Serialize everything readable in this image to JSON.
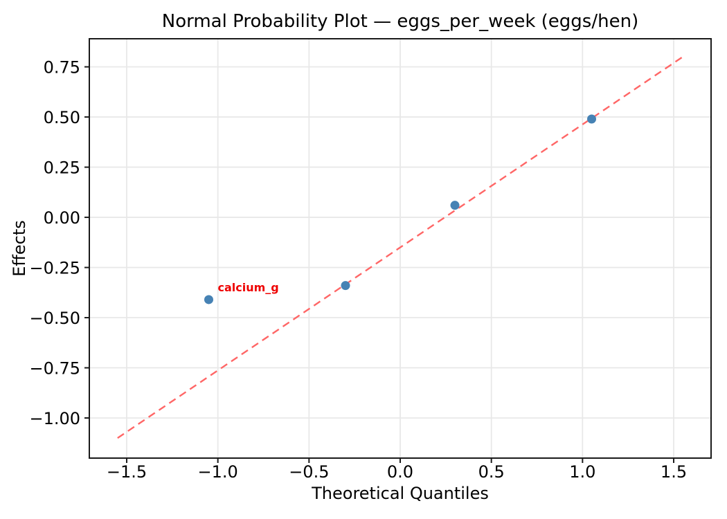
{
  "chart_data": {
    "type": "scatter",
    "title": "Normal Probability Plot — eggs_per_week (eggs/hen)",
    "xlabel": "Theoretical Quantiles",
    "ylabel": "Effects",
    "xlim": [
      -1.705,
      1.705
    ],
    "ylim": [
      -1.2,
      0.89
    ],
    "x_ticks": [
      -1.5,
      -1.0,
      -0.5,
      0.0,
      0.5,
      1.0,
      1.5
    ],
    "y_ticks": [
      -1.0,
      -0.75,
      -0.5,
      -0.25,
      0.0,
      0.25,
      0.5,
      0.75
    ],
    "x_tick_decimals": 1,
    "y_tick_decimals": 2,
    "grid": true,
    "legend": "none",
    "points": [
      {
        "x": -1.05,
        "y": -0.41,
        "label": "calcium_g"
      },
      {
        "x": -0.3,
        "y": -0.34,
        "label": ""
      },
      {
        "x": 0.3,
        "y": 0.06,
        "label": ""
      },
      {
        "x": 1.05,
        "y": 0.49,
        "label": ""
      }
    ],
    "fit_line": {
      "style": "dashed",
      "endpoints": [
        {
          "x": -1.55,
          "y": -1.1
        },
        {
          "x": 1.55,
          "y": 0.8
        }
      ]
    },
    "colors": {
      "point": "#4682b4",
      "fit_line": "#ff6666",
      "annotation": "#ee0000",
      "grid": "#e8e8e8",
      "axes": "#000000"
    }
  }
}
